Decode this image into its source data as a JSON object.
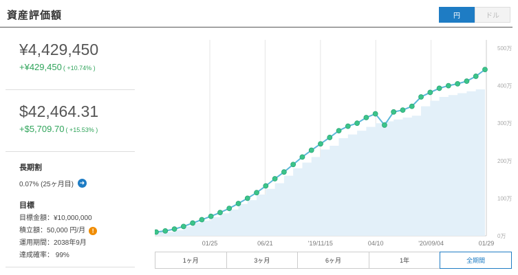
{
  "header": {
    "title": "資産評価額",
    "currency_toggle": [
      {
        "label": "円",
        "active": true
      },
      {
        "label": "ドル",
        "active": false
      }
    ]
  },
  "jpy": {
    "amount": "¥4,429,450",
    "change": "+¥429,450",
    "change_pct": "( +10.74% )"
  },
  "usd": {
    "amount": "$42,464.31",
    "change": "+$5,709.70",
    "change_pct": "( +15.53% )"
  },
  "long_term": {
    "title": "長期割",
    "value": "0.07% (25ヶ月目)"
  },
  "goal": {
    "title": "目標",
    "target": "目標金額：¥10,000,000",
    "monthly": "積立額：50,000 円/月",
    "period": "運用期間：2038年9月",
    "probability": "達成確率： 99%"
  },
  "range_buttons": [
    "1ヶ月",
    "3ヶ月",
    "6ヶ月",
    "1年",
    "全期間"
  ],
  "range_active": "全期間",
  "colors": {
    "accent": "#1e7cc4",
    "positive": "#2fa45a",
    "line": "#5bb8d8",
    "dots": "#3cc48a",
    "area": "#e3f0f9",
    "warning": "#f08c00"
  },
  "chart_data": {
    "type": "area",
    "x_tick_labels": [
      "01/25",
      "06/21",
      "'19/11/15",
      "04/10",
      "'20/09/04",
      "01/29"
    ],
    "y_tick_labels": [
      "0万",
      "100万",
      "200万",
      "300万",
      "400万",
      "500万"
    ],
    "ylim": [
      0,
      5000000
    ],
    "series": [
      {
        "kind": "line",
        "values": [
          100000,
          130000,
          180000,
          250000,
          340000,
          430000,
          520000,
          620000,
          730000,
          860000,
          1000000,
          1150000,
          1330000,
          1520000,
          1700000,
          1900000,
          2100000,
          2280000,
          2450000,
          2620000,
          2800000,
          2920000,
          3000000,
          3150000,
          3250000,
          2950000,
          3300000,
          3350000,
          3450000,
          3700000,
          3820000,
          3930000,
          4000000,
          4050000,
          4120000,
          4250000,
          4430000
        ]
      },
      {
        "kind": "area",
        "values": [
          100000,
          100000,
          150000,
          250000,
          350000,
          400000,
          500000,
          600000,
          700000,
          850000,
          950000,
          1100000,
          1250000,
          1400000,
          1600000,
          1800000,
          1950000,
          2100000,
          2300000,
          2400000,
          2600000,
          2700000,
          2800000,
          2900000,
          3000000,
          3050000,
          3100000,
          3150000,
          3200000,
          3450000,
          3600000,
          3700000,
          3750000,
          3800000,
          3850000,
          3900000,
          4000000
        ]
      }
    ],
    "grid": true
  }
}
